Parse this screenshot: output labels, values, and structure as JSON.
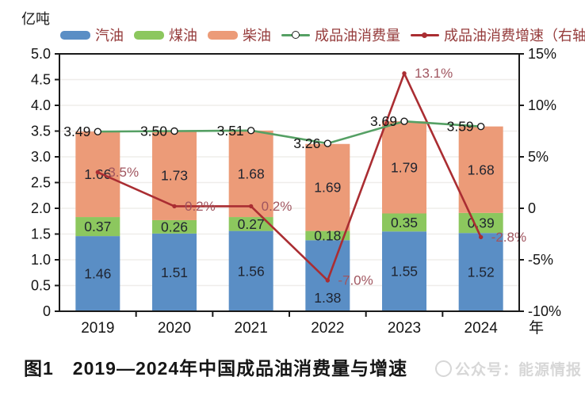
{
  "caption": "图1　2019—2024年中国成品油消费量与增速",
  "watermark": "公众号：能源情报",
  "colors": {
    "gasoline": "#5A8EC5",
    "kerosene": "#8CC75E",
    "diesel": "#EC9B78",
    "consumption_line": "#55A064",
    "growth_line": "#AA2D32",
    "growth_label": "#A0555F",
    "legend_text": "#953B3B",
    "axis": "#1A1A1A",
    "grid": "#EFEDEA"
  },
  "chart_data": {
    "type": "bar+line combo (stacked bars, dual axis)",
    "title": "图1　2019—2024年中国成品油消费量与增速",
    "xlabel": "年",
    "ylabel": "亿吨",
    "categories": [
      "2019",
      "2020",
      "2021",
      "2022",
      "2023",
      "2024"
    ],
    "bar_series": [
      {
        "name": "汽油",
        "color": "#5A8EC5",
        "values": [
          1.46,
          1.51,
          1.56,
          1.38,
          1.55,
          1.52
        ]
      },
      {
        "name": "煤油",
        "color": "#8CC75E",
        "values": [
          0.37,
          0.26,
          0.27,
          0.18,
          0.35,
          0.39
        ]
      },
      {
        "name": "柴油",
        "color": "#EC9B78",
        "values": [
          1.66,
          1.73,
          1.68,
          1.69,
          1.79,
          1.68
        ]
      }
    ],
    "line_series": [
      {
        "name": "成品油消费量",
        "axis": "left",
        "color": "#55A064",
        "values": [
          3.49,
          3.5,
          3.51,
          3.26,
          3.69,
          3.59
        ],
        "labels": [
          "3.49",
          "3.50",
          "3.51",
          "3.26",
          "3.69",
          "3.59"
        ]
      },
      {
        "name": "成品油消费增速（右轴）",
        "axis": "right",
        "color": "#AA2D32",
        "label_color": "#A0555F",
        "values": [
          3.5,
          0.2,
          0.2,
          -7.0,
          13.1,
          -2.8
        ],
        "labels": [
          "3.5%",
          "0.2%",
          "0.2%",
          "-7.0%",
          "13.1%",
          "-2.8%"
        ]
      }
    ],
    "left_axis": {
      "min": 0,
      "max": 5,
      "tick_labels": [
        "5.0",
        "4.5",
        "4.0",
        "3.5",
        "3.0",
        "2.5",
        "2.0",
        "1.5",
        "1.0",
        "0.5",
        "0"
      ]
    },
    "right_axis": {
      "min": -10,
      "max": 15,
      "tick_labels": [
        "15%",
        "10%",
        "5%",
        "0",
        "-5%",
        "-10%"
      ]
    },
    "grid": "horizontal, every 0.5 (left axis)",
    "legend_position": "top"
  }
}
